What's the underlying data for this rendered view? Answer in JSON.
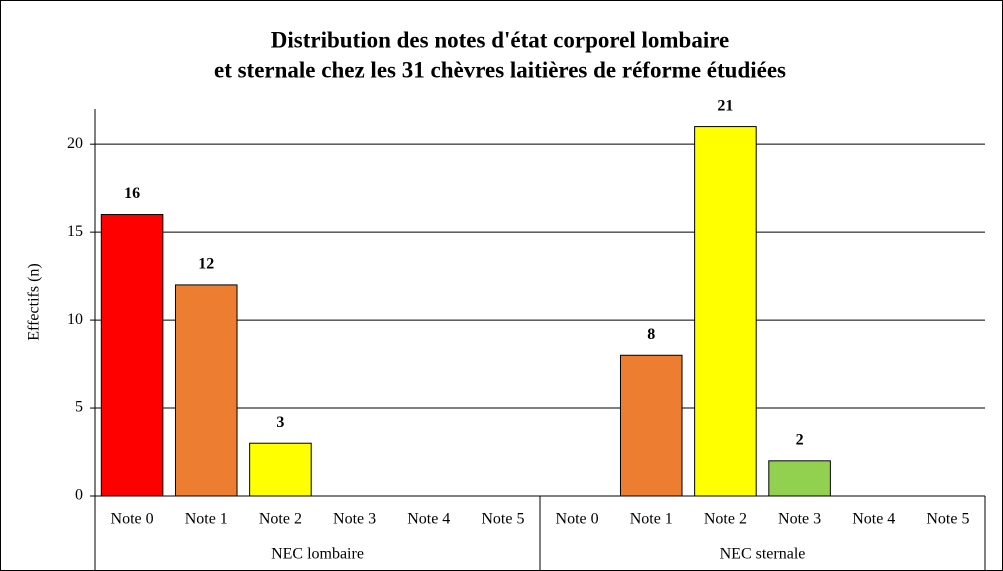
{
  "chart_data": {
    "type": "bar",
    "title": [
      "Distribution des notes d'état corporel lombaire",
      "et sternale chez les 31 chèvres laitières de réforme étudiées"
    ],
    "y_label": "Effectifs (n)",
    "groups": [
      {
        "name": "NEC lombaire",
        "categories": [
          "Note 0",
          "Note 1",
          "Note 2",
          "Note 3",
          "Note 4",
          "Note 5"
        ],
        "values": [
          16,
          12,
          3,
          null,
          null,
          null
        ],
        "colors": [
          "#ff0000",
          "#ed7d31",
          "#ffff00",
          null,
          null,
          null
        ]
      },
      {
        "name": "NEC sternale",
        "categories": [
          "Note 0",
          "Note 1",
          "Note 2",
          "Note 3",
          "Note 4",
          "Note 5"
        ],
        "values": [
          null,
          8,
          21,
          2,
          null,
          null
        ],
        "colors": [
          null,
          "#ed7d31",
          "#ffff00",
          "#92d050",
          null,
          null
        ]
      }
    ],
    "ylim": [
      0,
      22
    ],
    "yticks": [
      0,
      5,
      10,
      15,
      20
    ],
    "grid": true
  }
}
